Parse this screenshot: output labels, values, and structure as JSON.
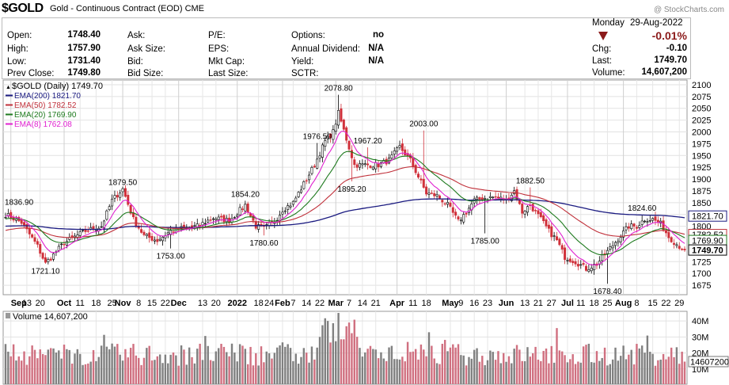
{
  "header": {
    "symbol": "$GOLD",
    "description": "Gold - Continuous Contract (EOD)",
    "exchange": "CME",
    "watermark": "@ StockCharts.com"
  },
  "quote": {
    "open_label": "Open:",
    "open": "1748.40",
    "high_label": "High:",
    "high": "1757.90",
    "low_label": "Low:",
    "low": "1731.40",
    "prev_label": "Prev Close:",
    "prev": "1749.80",
    "ask_label": "Ask:",
    "asksize_label": "Ask Size:",
    "bid_label": "Bid:",
    "bidsize_label": "Bid Size:",
    "pe_label": "P/E:",
    "eps_label": "EPS:",
    "mktcap_label": "Mkt Cap:",
    "lastsize_label": "Last Size:",
    "options_label": "Options:",
    "options": "no",
    "div_label": "Annual Dividend:",
    "div": "N/A",
    "yield_label": "Yield:",
    "yield": "N/A",
    "sctr_label": "SCTR:",
    "day": "Monday",
    "date": "29-Aug-2022",
    "pct": "-0.01%",
    "chg_label": "Chg:",
    "chg": "-0.10",
    "last_label": "Last:",
    "last": "1749.70",
    "vol_label": "Volume:",
    "volume": "14,607,200",
    "down_color": "#8b1a1a"
  },
  "chart_data": {
    "type": "line",
    "price_panel": {
      "legend": [
        {
          "label": "$GOLD (Daily) 1749.70",
          "color": "#000000"
        },
        {
          "label": "EMA(200) 1821.70",
          "color": "#1a1a80"
        },
        {
          "label": "EMA(50) 1782.52",
          "color": "#c0303a"
        },
        {
          "label": "EMA(20) 1769.90",
          "color": "#1e7a1e"
        },
        {
          "label": "EMA(8) 1762.08",
          "color": "#e020d0"
        }
      ],
      "ylim": [
        1655,
        2110
      ],
      "y_ticks": [
        1675,
        1700,
        1725,
        1750,
        1775,
        1800,
        1825,
        1850,
        1875,
        1900,
        1925,
        1950,
        1975,
        2000,
        2025,
        2050,
        2075,
        2100
      ],
      "close_keypoints": [
        [
          0,
          1825
        ],
        [
          6,
          1808
        ],
        [
          12,
          1758
        ],
        [
          15,
          1721
        ],
        [
          22,
          1765
        ],
        [
          30,
          1790
        ],
        [
          36,
          1800
        ],
        [
          40,
          1855
        ],
        [
          44,
          1879
        ],
        [
          48,
          1815
        ],
        [
          52,
          1780
        ],
        [
          57,
          1770
        ],
        [
          62,
          1790
        ],
        [
          66,
          1795
        ],
        [
          72,
          1800
        ],
        [
          78,
          1818
        ],
        [
          84,
          1812
        ],
        [
          90,
          1845
        ],
        [
          94,
          1800
        ],
        [
          97,
          1795
        ],
        [
          101,
          1810
        ],
        [
          104,
          1835
        ],
        [
          108,
          1850
        ],
        [
          112,
          1890
        ],
        [
          116,
          1930
        ],
        [
          120,
          1980
        ],
        [
          123,
          2000
        ],
        [
          125,
          2040
        ],
        [
          128,
          1985
        ],
        [
          131,
          1930
        ],
        [
          135,
          1930
        ],
        [
          140,
          1930
        ],
        [
          144,
          1940
        ],
        [
          148,
          1968
        ],
        [
          152,
          1940
        ],
        [
          155,
          1905
        ],
        [
          158,
          1870
        ],
        [
          162,
          1865
        ],
        [
          166,
          1845
        ],
        [
          170,
          1810
        ],
        [
          173,
          1830
        ],
        [
          176,
          1855
        ],
        [
          180,
          1860
        ],
        [
          184,
          1862
        ],
        [
          188,
          1855
        ],
        [
          191,
          1875
        ],
        [
          194,
          1830
        ],
        [
          197,
          1845
        ],
        [
          201,
          1815
        ],
        [
          204,
          1790
        ],
        [
          207,
          1770
        ],
        [
          210,
          1735
        ],
        [
          214,
          1725
        ],
        [
          218,
          1710
        ],
        [
          222,
          1720
        ],
        [
          225,
          1740
        ],
        [
          228,
          1760
        ],
        [
          231,
          1780
        ],
        [
          234,
          1800
        ],
        [
          237,
          1800
        ],
        [
          240,
          1815
        ],
        [
          243,
          1815
        ],
        [
          246,
          1805
        ],
        [
          249,
          1778
        ],
        [
          252,
          1762
        ],
        [
          255,
          1749.7
        ]
      ],
      "annotations": [
        {
          "label": "1836.90",
          "i": 1,
          "v": 1836.9,
          "pos": "above"
        },
        {
          "label": "1721.10",
          "i": 15,
          "v": 1721.1,
          "pos": "below"
        },
        {
          "label": "1879.50",
          "i": 44,
          "v": 1879.5,
          "pos": "above"
        },
        {
          "label": "1753.00",
          "i": 62,
          "v": 1753.0,
          "pos": "below"
        },
        {
          "label": "1854.20",
          "i": 90,
          "v": 1854.2,
          "pos": "above"
        },
        {
          "label": "1780.60",
          "i": 97,
          "v": 1780.6,
          "pos": "below"
        },
        {
          "label": "1976.50",
          "i": 117,
          "v": 1976.5,
          "pos": "above"
        },
        {
          "label": "2078.80",
          "i": 125,
          "v": 2078.8,
          "pos": "above"
        },
        {
          "label": "1967.20",
          "i": 136,
          "v": 1967.2,
          "pos": "above"
        },
        {
          "label": "1895.20",
          "i": 130,
          "v": 1895.2,
          "pos": "below"
        },
        {
          "label": "2003.00",
          "i": 157,
          "v": 2003.0,
          "pos": "above"
        },
        {
          "label": "1785.00",
          "i": 180,
          "v": 1785.0,
          "pos": "below"
        },
        {
          "label": "1882.50",
          "i": 197,
          "v": 1882.5,
          "pos": "above"
        },
        {
          "label": "1678.40",
          "i": 226,
          "v": 1678.4,
          "pos": "below"
        },
        {
          "label": "1824.60",
          "i": 239,
          "v": 1824.6,
          "pos": "above"
        }
      ],
      "right_labels": [
        {
          "label": "1821.70",
          "v": 1821.7,
          "color": "#1a1a80"
        },
        {
          "label": "1782.52",
          "v": 1782.52,
          "color": "#c0303a"
        },
        {
          "label": "1769.90",
          "v": 1769.9,
          "color": "#1e7a1e"
        },
        {
          "label": "1749.70",
          "v": 1749.7,
          "color": "#000000"
        }
      ]
    },
    "x_labels": [
      {
        "label": "Sep",
        "i": 2,
        "bold": true
      },
      {
        "label": "13",
        "i": 8
      },
      {
        "label": "20",
        "i": 13
      },
      {
        "label": "Oct",
        "i": 22,
        "bold": true
      },
      {
        "label": "11",
        "i": 28
      },
      {
        "label": "18",
        "i": 34
      },
      {
        "label": "25",
        "i": 40
      },
      {
        "label": "Nov",
        "i": 44,
        "bold": true
      },
      {
        "label": "8",
        "i": 50
      },
      {
        "label": "15",
        "i": 55
      },
      {
        "label": "22",
        "i": 60
      },
      {
        "label": "Dec",
        "i": 65,
        "bold": true
      },
      {
        "label": "13",
        "i": 74
      },
      {
        "label": "20",
        "i": 79
      },
      {
        "label": "2022",
        "i": 87,
        "bold": true
      },
      {
        "label": "18",
        "i": 95
      },
      {
        "label": "24",
        "i": 99
      },
      {
        "label": "Feb",
        "i": 104,
        "bold": true
      },
      {
        "label": "7",
        "i": 108
      },
      {
        "label": "14",
        "i": 113
      },
      {
        "label": "22",
        "i": 118
      },
      {
        "label": "Mar",
        "i": 124,
        "bold": true
      },
      {
        "label": "7",
        "i": 129
      },
      {
        "label": "14",
        "i": 134
      },
      {
        "label": "21",
        "i": 139
      },
      {
        "label": "Apr",
        "i": 147,
        "bold": true
      },
      {
        "label": "11",
        "i": 153
      },
      {
        "label": "18",
        "i": 158
      },
      {
        "label": "May",
        "i": 167,
        "bold": true
      },
      {
        "label": "9",
        "i": 171
      },
      {
        "label": "16",
        "i": 176
      },
      {
        "label": "23",
        "i": 181
      },
      {
        "label": "Jun",
        "i": 188,
        "bold": true
      },
      {
        "label": "13",
        "i": 195
      },
      {
        "label": "21",
        "i": 200
      },
      {
        "label": "27",
        "i": 205
      },
      {
        "label": "Jul",
        "i": 211,
        "bold": true
      },
      {
        "label": "11",
        "i": 216
      },
      {
        "label": "18",
        "i": 221
      },
      {
        "label": "25",
        "i": 226
      },
      {
        "label": "Aug",
        "i": 232,
        "bold": true
      },
      {
        "label": "8",
        "i": 237
      },
      {
        "label": "15",
        "i": 243
      },
      {
        "label": "22",
        "i": 248
      },
      {
        "label": "29",
        "i": 253
      }
    ],
    "volume_panel": {
      "legend": "Volume 14,607,200",
      "ylim": [
        0,
        46000000
      ],
      "y_ticks": [
        {
          "label": "40M",
          "v": 40000000
        },
        {
          "label": "30M",
          "v": 30000000
        },
        {
          "label": "20M",
          "v": 20000000
        },
        {
          "label": "10M",
          "v": 10000000
        }
      ],
      "right_label": {
        "label": "14607200",
        "v": 14607200
      },
      "up_color": "#808080",
      "down_color": "#d07080"
    }
  }
}
